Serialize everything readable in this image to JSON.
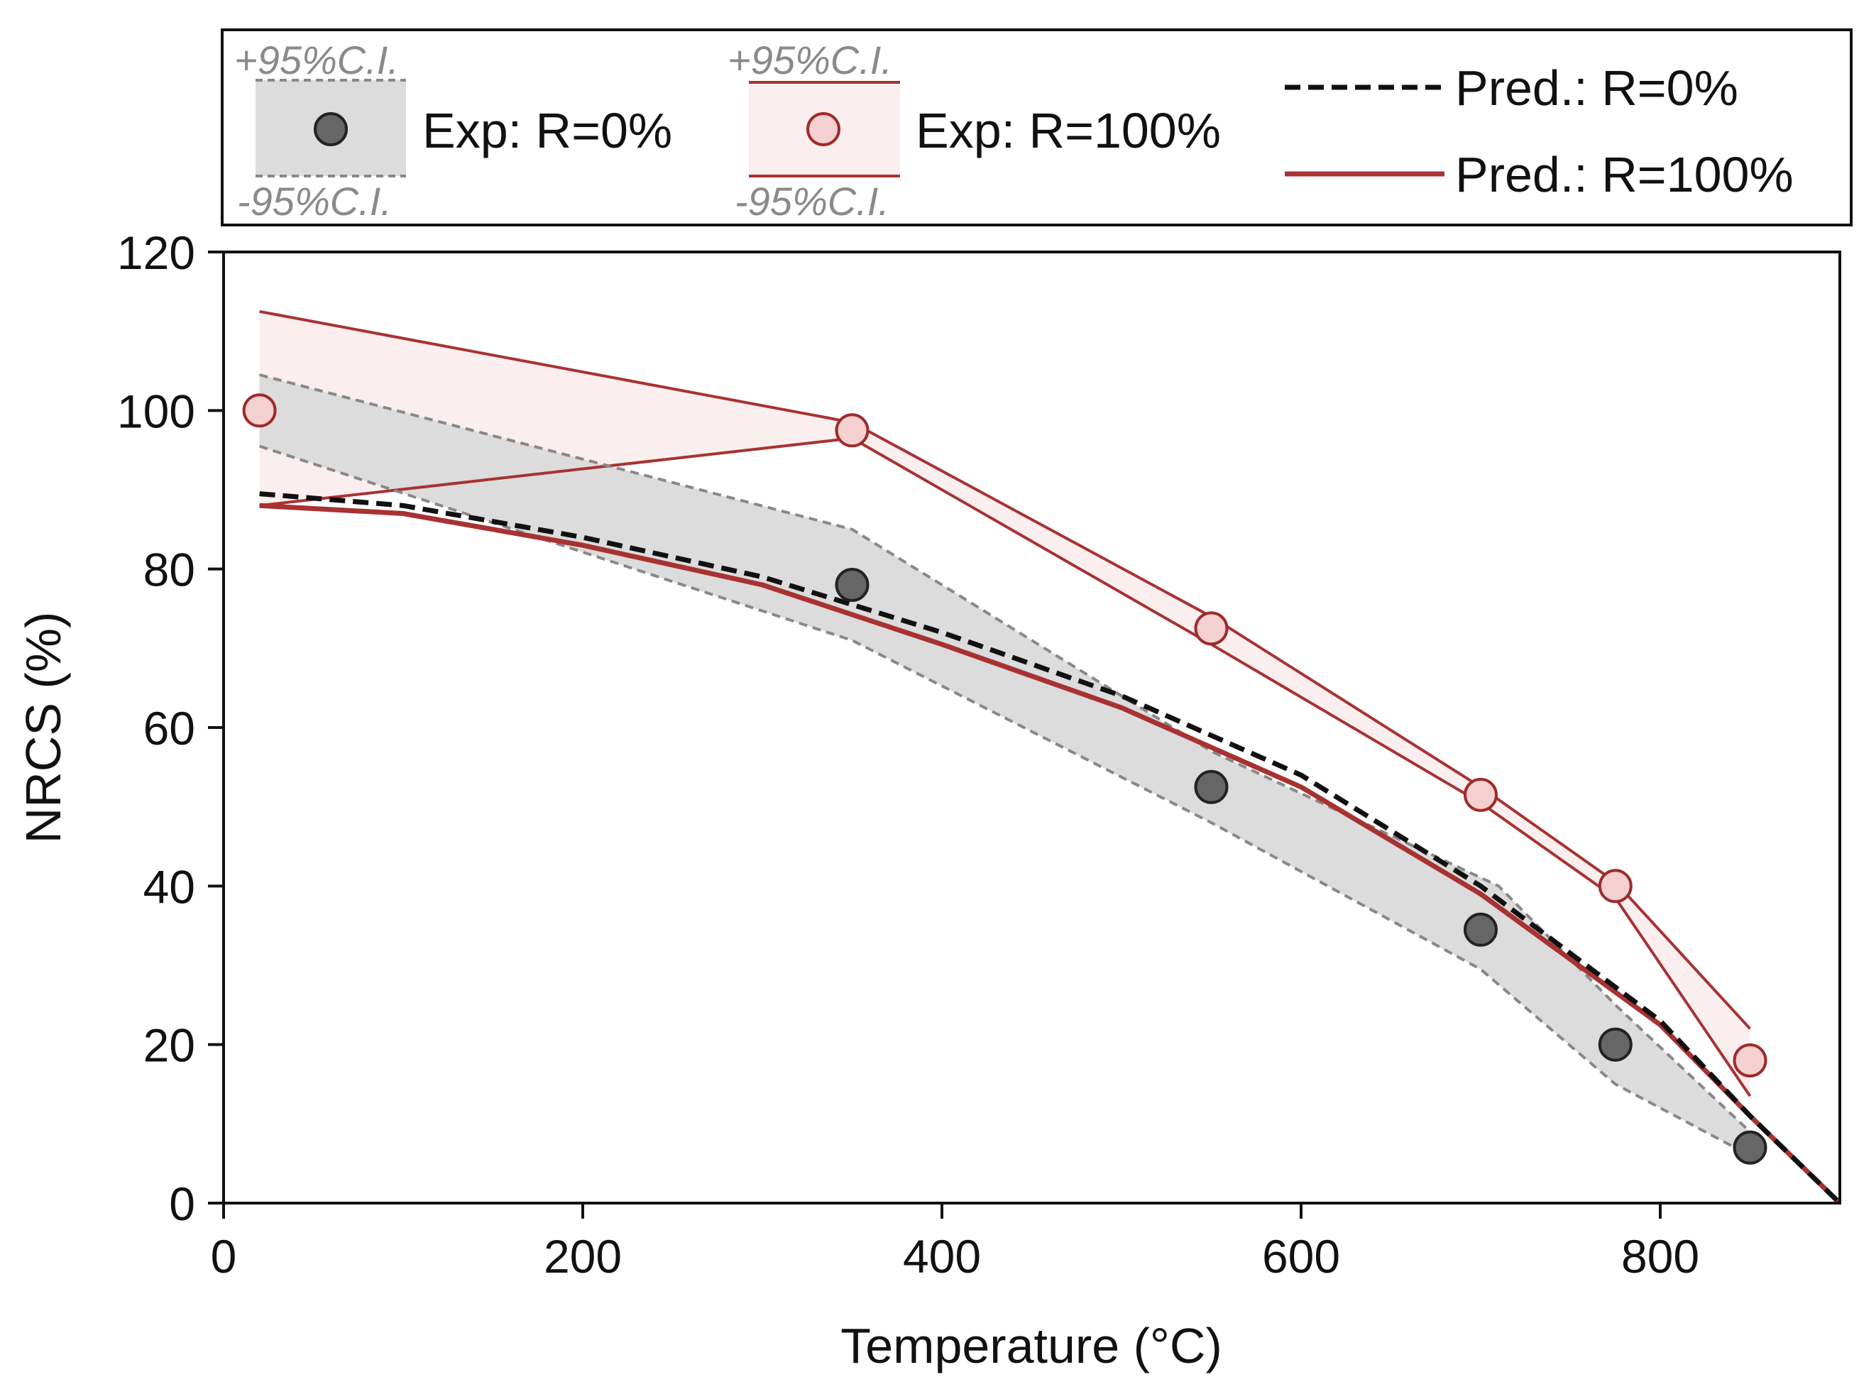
{
  "chart_data": {
    "type": "line",
    "title": "",
    "xlabel": "Temperature (°C)",
    "ylabel": "NRCS (%)",
    "xlim": [
      0,
      900
    ],
    "ylim": [
      0,
      120
    ],
    "xticks": [
      0,
      200,
      400,
      600,
      800
    ],
    "yticks": [
      0,
      20,
      40,
      60,
      80,
      100,
      120
    ],
    "grid": false,
    "legend_position": "top",
    "ci_labels": {
      "upper": "+95%C.I.",
      "lower": "-95%C.I."
    },
    "series": [
      {
        "name": "Exp: R=0%",
        "kind": "scatter",
        "color": "#666666",
        "x": [
          350,
          550,
          700,
          775,
          850
        ],
        "y": [
          78,
          52.5,
          34.5,
          20,
          7
        ],
        "ci_upper": [
          {
            "x": 20,
            "y": 104.5
          },
          {
            "x": 350,
            "y": 85
          },
          {
            "x": 550,
            "y": 57
          },
          {
            "x": 710,
            "y": 40
          },
          {
            "x": 775,
            "y": 25
          },
          {
            "x": 850,
            "y": 9
          }
        ],
        "ci_lower": [
          {
            "x": 20,
            "y": 95.5
          },
          {
            "x": 350,
            "y": 71
          },
          {
            "x": 550,
            "y": 48
          },
          {
            "x": 700,
            "y": 29.5
          },
          {
            "x": 775,
            "y": 15
          },
          {
            "x": 850,
            "y": 6
          }
        ],
        "ci_fill": "#dcdcdc",
        "ci_line_color": "#888888"
      },
      {
        "name": "Exp: R=100%",
        "kind": "scatter",
        "color": "#f4d0d0",
        "stroke": "#9e2a2b",
        "x": [
          20,
          350,
          550,
          700,
          775,
          850
        ],
        "y": [
          100,
          97.5,
          72.5,
          51.5,
          40,
          18
        ],
        "ci_upper": [
          {
            "x": 20,
            "y": 112.5
          },
          {
            "x": 350,
            "y": 98.5
          },
          {
            "x": 550,
            "y": 74
          },
          {
            "x": 700,
            "y": 52.5
          },
          {
            "x": 775,
            "y": 40.5
          },
          {
            "x": 850,
            "y": 22
          }
        ],
        "ci_lower": [
          {
            "x": 20,
            "y": 88
          },
          {
            "x": 350,
            "y": 96.5
          },
          {
            "x": 550,
            "y": 70.5
          },
          {
            "x": 700,
            "y": 50.5
          },
          {
            "x": 775,
            "y": 38.5
          },
          {
            "x": 850,
            "y": 13.5
          }
        ],
        "ci_fill": "#fbeeee",
        "ci_line_color": "#a83232"
      },
      {
        "name": "Pred.: R=0%",
        "kind": "line",
        "style": "dashed",
        "color": "#111111",
        "x": [
          20,
          100,
          200,
          300,
          400,
          500,
          600,
          700,
          800,
          850,
          900
        ],
        "y": [
          89.5,
          88,
          84,
          79,
          72,
          64,
          54,
          40,
          23,
          11,
          0
        ]
      },
      {
        "name": "Pred.: R=100%",
        "kind": "line",
        "style": "solid",
        "color": "#a83232",
        "x": [
          20,
          100,
          200,
          300,
          400,
          500,
          600,
          700,
          800,
          850,
          900
        ],
        "y": [
          88,
          87,
          83,
          78,
          70.5,
          62.5,
          52.5,
          39,
          22.5,
          11,
          0
        ]
      }
    ]
  }
}
